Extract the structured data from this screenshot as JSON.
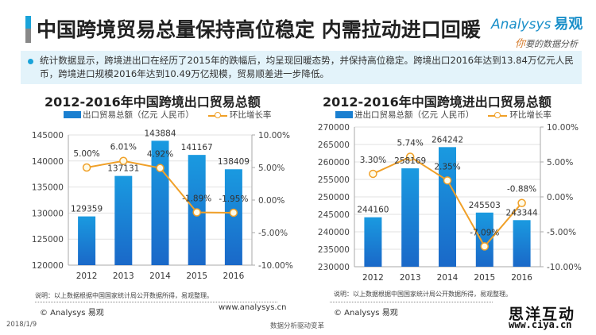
{
  "header": {
    "title": "中国跨境贸易总量保持高位稳定 内需拉动进口回暖",
    "logo_brand": "Analysys",
    "logo_brand_cn": "易观",
    "logo_slogan_first": "你",
    "logo_slogan_rest": "要的数据分析"
  },
  "summary": {
    "text": "统计数据显示，跨境进出口在经历了2015年的跌幅后，均呈现回暖态势，并保持高位稳定。跨境出口2016年达到13.84万亿元人民币，跨境进口规模2016年达到10.49万亿规模，贸易顺差进一步降低。"
  },
  "chart_data": [
    {
      "type": "bar",
      "title": "2012-2016年中国跨境出口贸易总额",
      "categories": [
        "2012",
        "2013",
        "2014",
        "2015",
        "2016"
      ],
      "series": [
        {
          "name": "出口贸易总额（亿元 人民币）",
          "type": "bar",
          "axis": "left",
          "values": [
            129359,
            137131,
            143884,
            141167,
            138409
          ],
          "labels": [
            "129359",
            "137131",
            "143884",
            "141167",
            "138409"
          ],
          "color": "#1a7fd0"
        },
        {
          "name": "环比增长率",
          "type": "line",
          "axis": "right",
          "values": [
            5.0,
            6.01,
            4.92,
            -1.89,
            -1.95
          ],
          "labels": [
            "5.00%",
            "6.01%",
            "4.92%",
            "-1.89%",
            "-1.95%"
          ],
          "color": "#f0a028"
        }
      ],
      "ylim": [
        120000,
        145000
      ],
      "yticks": [
        120000,
        125000,
        130000,
        135000,
        140000,
        145000
      ],
      "ytick_labels": [
        "120000",
        "125000",
        "130000",
        "135000",
        "140000",
        "145000"
      ],
      "y2lim": [
        -10,
        10
      ],
      "y2ticks": [
        -10,
        -5,
        0,
        5,
        10
      ],
      "y2tick_labels": [
        "-10.00%",
        "-5.00%",
        "0.00%",
        "5.00%",
        "10.00%"
      ],
      "grid": true,
      "legend": "top",
      "note": "说明：以上数据根据中国国家统计局公开数据所得，易观整理。"
    },
    {
      "type": "bar",
      "title": "2012-2016年中国跨境进出口贸易总额",
      "categories": [
        "2012",
        "2013",
        "2014",
        "2015",
        "2016"
      ],
      "series": [
        {
          "name": "进出口贸易总额（亿元 人民币）",
          "type": "bar",
          "axis": "left",
          "values": [
            244160,
            258169,
            264242,
            245503,
            243344
          ],
          "labels": [
            "244160",
            "258169",
            "264242",
            "245503",
            "243344"
          ],
          "color": "#1a7fd0"
        },
        {
          "name": "环比增长率",
          "type": "line",
          "axis": "right",
          "values": [
            3.3,
            5.74,
            2.35,
            -7.09,
            -0.88
          ],
          "labels": [
            "3.30%",
            "5.74%",
            "2.35%",
            "-7.09%",
            "-0.88%"
          ],
          "color": "#f0a028"
        }
      ],
      "ylim": [
        230000,
        270000
      ],
      "yticks": [
        230000,
        235000,
        240000,
        245000,
        250000,
        255000,
        260000,
        265000,
        270000
      ],
      "ytick_labels": [
        "230000",
        "235000",
        "240000",
        "245000",
        "250000",
        "255000",
        "260000",
        "265000",
        "270000"
      ],
      "y2lim": [
        -10,
        10
      ],
      "y2ticks": [
        -10,
        -5,
        0,
        5,
        10
      ],
      "y2tick_labels": [
        "-10.00%",
        "-5.00%",
        "0.00%",
        "5.00%",
        "10.00%"
      ],
      "grid": true,
      "legend": "top",
      "note": "说明：以上数据根据中国国家统计局公开数据所得，易观整理。"
    }
  ],
  "footer": {
    "copyright_left": "© Analysys 易观",
    "url": "www.analysys.cn",
    "copyright_right": "© Analysys 易观",
    "date": "2018/1/9",
    "slogan": "数据分析驱动变革",
    "watermark_cn": "思洋互动",
    "watermark_url": "www.ciya.cn"
  }
}
